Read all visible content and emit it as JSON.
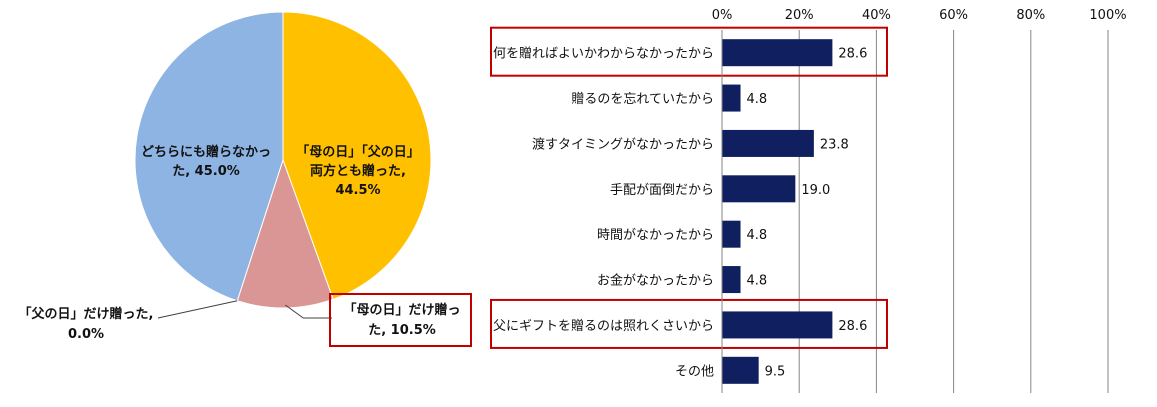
{
  "chart_data": [
    {
      "type": "pie",
      "slices": [
        {
          "label_lines": [
            "「母の日」「父の日」",
            "両方とも贈った,",
            "44.5%"
          ],
          "value": 44.5,
          "color": "#ffc000"
        },
        {
          "label_lines": [
            "「母の日」だけ贈っ",
            "た, 10.5%"
          ],
          "value": 10.5,
          "color": "#da9694"
        },
        {
          "label_lines": [
            "「父の日」だけ贈った,",
            "0.0%"
          ],
          "value": 0.0,
          "color": "#da9694"
        },
        {
          "label_lines": [
            "どちらにも贈らなかっ",
            "た, 45.0%"
          ],
          "value": 45.0,
          "color": "#8eb4e3"
        }
      ],
      "highlight_color": "#c00000"
    },
    {
      "type": "bar",
      "orientation": "horizontal",
      "categories": [
        "何を贈ればよいかわからなかったから",
        "贈るのを忘れていたから",
        "渡すタイミングがなかったから",
        "手配が面倒だから",
        "時間がなかったから",
        "お金がなかったから",
        "父にギフトを贈るのは照れくさいから",
        "その他"
      ],
      "values": [
        28.6,
        4.8,
        23.8,
        19.0,
        4.8,
        4.8,
        28.6,
        9.5
      ],
      "value_labels": [
        "28.6",
        "4.8",
        "23.8",
        "19.0",
        "4.8",
        "4.8",
        "28.6",
        "9.5"
      ],
      "xlim": [
        0,
        100
      ],
      "xticks": [
        "0%",
        "20%",
        "40%",
        "60%",
        "80%",
        "100%"
      ],
      "grid": true,
      "bar_color": "#0f1f5f",
      "highlighted_categories": [
        0,
        6
      ],
      "highlight_color": "#c00000"
    }
  ]
}
